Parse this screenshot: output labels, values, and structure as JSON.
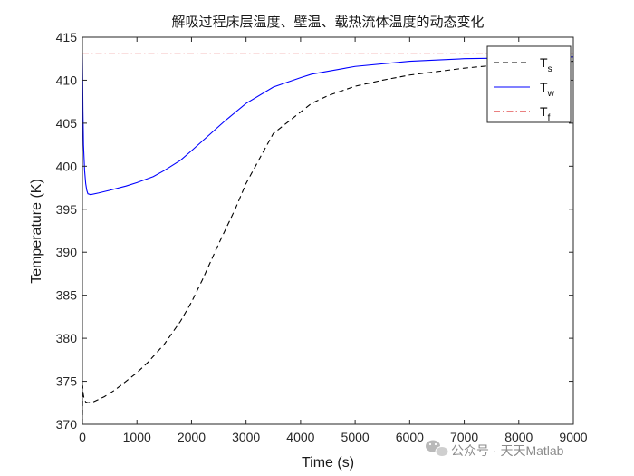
{
  "chart_data": {
    "type": "line",
    "title": "解吸过程床层温度、壁温、载热流体温度的动态变化",
    "xlabel": "Time (s)",
    "ylabel": "Temperature (K)",
    "xlim": [
      0,
      9000
    ],
    "ylim": [
      370,
      415
    ],
    "xticks": [
      0,
      1000,
      2000,
      3000,
      4000,
      5000,
      6000,
      7000,
      8000,
      9000
    ],
    "yticks": [
      370,
      375,
      380,
      385,
      390,
      395,
      400,
      405,
      410,
      415
    ],
    "grid": false,
    "legend_position": "top-right",
    "series": [
      {
        "name": "T_s",
        "legend": {
          "main": "T",
          "sub": "s"
        },
        "color": "#000000",
        "style": "dashed",
        "x": [
          0,
          5,
          15,
          30,
          60,
          100,
          200,
          400,
          600,
          800,
          1000,
          1200,
          1500,
          1800,
          2000,
          2200,
          2500,
          2800,
          3000,
          3300,
          3500,
          4000,
          4200,
          4500,
          5000,
          5500,
          6000,
          6500,
          7000,
          7500,
          8000,
          8500,
          9000
        ],
        "y": [
          370,
          374.5,
          373.5,
          373.0,
          372.6,
          372.5,
          372.6,
          373.2,
          374.0,
          375.0,
          376.0,
          377.2,
          379.3,
          382.0,
          384.2,
          386.8,
          391.0,
          395.0,
          398.0,
          401.5,
          403.8,
          406.3,
          407.3,
          408.2,
          409.3,
          410.0,
          410.6,
          411.0,
          411.4,
          411.7,
          411.9,
          412.1,
          412.2
        ]
      },
      {
        "name": "T_w",
        "legend": {
          "main": "T",
          "sub": "w"
        },
        "color": "#0000ff",
        "style": "solid",
        "x": [
          0,
          5,
          10,
          20,
          40,
          60,
          80,
          100,
          150,
          300,
          500,
          800,
          1000,
          1300,
          1500,
          1800,
          2000,
          2300,
          2600,
          3000,
          3500,
          4000,
          4200,
          5000,
          6000,
          7000,
          8000,
          9000
        ],
        "y": [
          413.0,
          410.0,
          406.5,
          402.5,
          399.5,
          398.0,
          397.2,
          396.8,
          396.7,
          396.9,
          397.2,
          397.7,
          398.1,
          398.8,
          399.5,
          400.7,
          401.8,
          403.5,
          405.2,
          407.3,
          409.2,
          410.3,
          410.7,
          411.6,
          412.2,
          412.5,
          412.6,
          412.7
        ]
      },
      {
        "name": "T_f",
        "legend": {
          "main": "T",
          "sub": "f"
        },
        "color": "#d40000",
        "style": "dashdot",
        "x": [
          0,
          9000
        ],
        "y": [
          413.15,
          413.15
        ]
      }
    ]
  },
  "watermark": {
    "icon": "wechat-icon",
    "text": "公众号 · 天天Matlab"
  }
}
